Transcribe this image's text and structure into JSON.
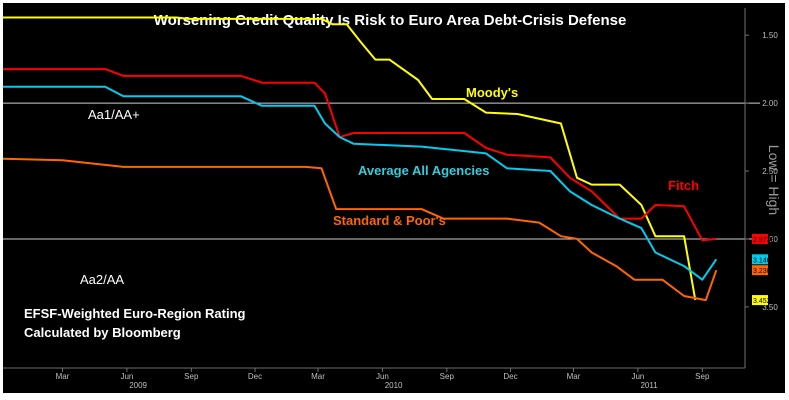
{
  "chart_data": {
    "type": "line",
    "title": "Worsening Credit Quality Is Risk to Euro Area Debt-Crisis Defense",
    "subtitle_lines": [
      "EFSF-Weighted Euro-Region Rating",
      "Calculated by Bloomberg"
    ],
    "side_label": "Low = High",
    "x_axis": {
      "start": "2008-12-20",
      "end": "2011-11-15",
      "month_ticks": [
        {
          "label": "Mar",
          "date": "2009-03-15"
        },
        {
          "label": "Jun",
          "date": "2009-06-15"
        },
        {
          "label": "Sep",
          "date": "2009-09-15"
        },
        {
          "label": "Dec",
          "date": "2009-12-15"
        },
        {
          "label": "Mar",
          "date": "2010-03-15"
        },
        {
          "label": "Jun",
          "date": "2010-06-15"
        },
        {
          "label": "Sep",
          "date": "2010-09-15"
        },
        {
          "label": "Dec",
          "date": "2010-12-15"
        },
        {
          "label": "Mar",
          "date": "2011-03-15"
        },
        {
          "label": "Jun",
          "date": "2011-06-15"
        },
        {
          "label": "Sep",
          "date": "2011-09-15"
        }
      ],
      "year_labels": [
        {
          "label": "2009",
          "date": "2009-07-01"
        },
        {
          "label": "2010",
          "date": "2010-07-01"
        },
        {
          "label": "2011",
          "date": "2011-07-01"
        }
      ]
    },
    "y_axis": {
      "min": 1.3,
      "max": 3.95,
      "reversed": true,
      "ticks": [
        "1.50",
        "2.00",
        "2.50",
        "3.00",
        "3.50"
      ]
    },
    "reference_lines": [
      {
        "value": 2.0,
        "label": "Aa1/AA+"
      },
      {
        "value": 3.0,
        "label": "Aa2/AA"
      }
    ],
    "series": [
      {
        "name": "Moody's",
        "color": "#ffff00",
        "last_value_label": "3.452",
        "points": [
          [
            "2008-12-20",
            1.37
          ],
          [
            "2009-08-25",
            1.37
          ],
          [
            "2009-09-10",
            1.38
          ],
          [
            "2009-12-25",
            1.38
          ],
          [
            "2010-03-20",
            1.38
          ],
          [
            "2010-04-05",
            1.42
          ],
          [
            "2010-04-25",
            1.42
          ],
          [
            "2010-05-15",
            1.55
          ],
          [
            "2010-06-05",
            1.68
          ],
          [
            "2010-06-25",
            1.68
          ],
          [
            "2010-08-05",
            1.83
          ],
          [
            "2010-08-25",
            1.97
          ],
          [
            "2010-10-10",
            1.97
          ],
          [
            "2010-11-10",
            2.07
          ],
          [
            "2010-12-25",
            2.08
          ],
          [
            "2011-02-25",
            2.15
          ],
          [
            "2011-03-20",
            2.55
          ],
          [
            "2011-04-10",
            2.6
          ],
          [
            "2011-05-20",
            2.6
          ],
          [
            "2011-06-20",
            2.75
          ],
          [
            "2011-07-10",
            2.98
          ],
          [
            "2011-08-20",
            2.98
          ],
          [
            "2011-09-05",
            3.45
          ]
        ]
      },
      {
        "name": "Fitch",
        "color": "#ff0000",
        "last_value_label": "2.9739",
        "points": [
          [
            "2008-12-20",
            1.75
          ],
          [
            "2009-05-15",
            1.75
          ],
          [
            "2009-06-10",
            1.8
          ],
          [
            "2009-11-25",
            1.8
          ],
          [
            "2009-12-25",
            1.85
          ],
          [
            "2010-03-10",
            1.85
          ],
          [
            "2010-03-25",
            1.93
          ],
          [
            "2010-04-15",
            2.25
          ],
          [
            "2010-05-05",
            2.22
          ],
          [
            "2010-10-10",
            2.22
          ],
          [
            "2010-11-10",
            2.33
          ],
          [
            "2010-12-10",
            2.38
          ],
          [
            "2011-02-10",
            2.4
          ],
          [
            "2011-03-10",
            2.55
          ],
          [
            "2011-04-10",
            2.65
          ],
          [
            "2011-05-20",
            2.85
          ],
          [
            "2011-06-20",
            2.85
          ],
          [
            "2011-07-10",
            2.75
          ],
          [
            "2011-08-20",
            2.76
          ],
          [
            "2011-09-15",
            3.01
          ],
          [
            "2011-10-05",
            3.0
          ]
        ]
      },
      {
        "name": "Average All Agencies",
        "color": "#00ccee",
        "last_value_label": "3.1468",
        "points": [
          [
            "2008-12-20",
            1.88
          ],
          [
            "2009-05-15",
            1.88
          ],
          [
            "2009-06-10",
            1.95
          ],
          [
            "2009-11-25",
            1.95
          ],
          [
            "2009-12-25",
            2.02
          ],
          [
            "2010-03-10",
            2.02
          ],
          [
            "2010-03-25",
            2.15
          ],
          [
            "2010-04-15",
            2.25
          ],
          [
            "2010-05-05",
            2.3
          ],
          [
            "2010-08-10",
            2.32
          ],
          [
            "2010-11-10",
            2.37
          ],
          [
            "2010-12-10",
            2.48
          ],
          [
            "2011-02-10",
            2.5
          ],
          [
            "2011-03-10",
            2.65
          ],
          [
            "2011-04-10",
            2.75
          ],
          [
            "2011-05-20",
            2.85
          ],
          [
            "2011-06-20",
            2.92
          ],
          [
            "2011-07-10",
            3.1
          ],
          [
            "2011-08-20",
            3.2
          ],
          [
            "2011-09-15",
            3.3
          ],
          [
            "2011-10-05",
            3.15
          ]
        ]
      },
      {
        "name": "Standard & Poor's",
        "color": "#ff6600",
        "last_value_label": "3.2301",
        "points": [
          [
            "2008-12-20",
            2.41
          ],
          [
            "2009-03-15",
            2.42
          ],
          [
            "2009-06-10",
            2.47
          ],
          [
            "2009-12-10",
            2.47
          ],
          [
            "2010-02-25",
            2.47
          ],
          [
            "2010-03-20",
            2.48
          ],
          [
            "2010-04-10",
            2.78
          ],
          [
            "2010-08-10",
            2.78
          ],
          [
            "2010-09-10",
            2.85
          ],
          [
            "2010-12-10",
            2.85
          ],
          [
            "2011-01-25",
            2.88
          ],
          [
            "2011-02-25",
            2.98
          ],
          [
            "2011-03-20",
            3.0
          ],
          [
            "2011-04-10",
            3.1
          ],
          [
            "2011-05-15",
            3.2
          ],
          [
            "2011-06-10",
            3.3
          ],
          [
            "2011-07-20",
            3.3
          ],
          [
            "2011-08-20",
            3.42
          ],
          [
            "2011-09-20",
            3.45
          ],
          [
            "2011-10-05",
            3.23
          ]
        ]
      }
    ],
    "labels": {
      "moodys": "Moody's",
      "fitch": "Fitch",
      "average": "Average All Agencies",
      "sp": "Standard & Poor's",
      "aa1": "Aa1/AA+",
      "aa2": "Aa2/AA"
    }
  }
}
